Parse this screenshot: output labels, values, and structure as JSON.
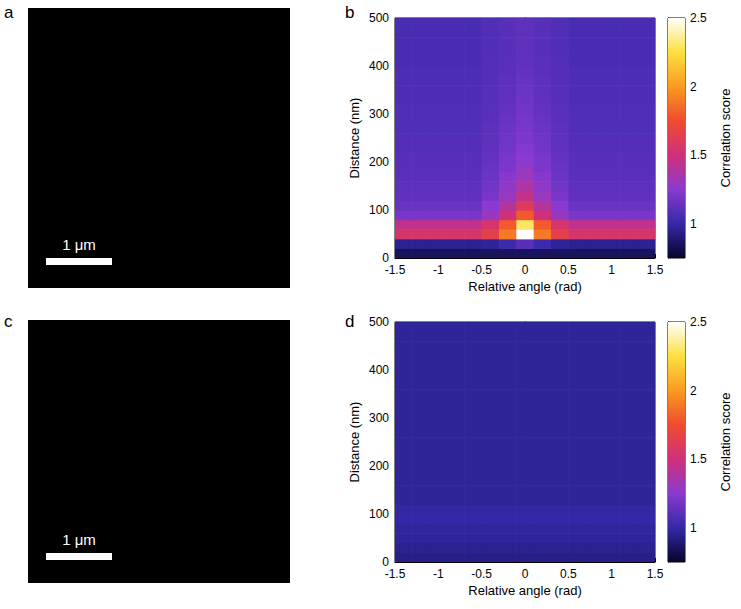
{
  "chart_data": [
    {
      "type": "image",
      "panel_label": "a",
      "scale_bar_label": "1 μm"
    },
    {
      "type": "heatmap",
      "panel_label": "b",
      "xlabel": "Relative angle (rad)",
      "ylabel": "Distance (nm)",
      "xlim": [
        -1.5,
        1.5
      ],
      "xticks": [
        -1.5,
        -1,
        -0.5,
        0,
        0.5,
        1,
        1.5
      ],
      "ylim": [
        0,
        500
      ],
      "yticks": [
        0,
        100,
        200,
        300,
        400,
        500
      ],
      "x_bins": [
        -1.5,
        -1.3,
        -1.1,
        -0.9,
        -0.7,
        -0.5,
        -0.3,
        -0.1,
        0.1,
        0.3,
        0.5,
        0.7,
        0.9,
        1.1,
        1.3,
        1.5
      ],
      "y_bins": [
        0,
        20,
        40,
        60,
        80,
        100,
        120,
        140,
        160,
        180,
        200,
        220,
        240,
        260,
        280,
        300,
        320,
        340,
        360,
        380,
        400,
        420,
        440,
        460,
        480,
        500
      ],
      "cells": [
        [
          0.85,
          0.85,
          0.85,
          0.85,
          0.85,
          0.85,
          0.85,
          0.85,
          0.85,
          0.85,
          0.85,
          0.85,
          0.85,
          0.85,
          0.85
        ],
        [
          0.95,
          0.95,
          0.95,
          0.95,
          0.95,
          0.97,
          1.02,
          1.1,
          1.02,
          0.97,
          0.95,
          0.95,
          0.95,
          0.95,
          0.95
        ],
        [
          1.55,
          1.55,
          1.55,
          1.55,
          1.55,
          1.65,
          1.9,
          2.5,
          1.9,
          1.65,
          1.55,
          1.55,
          1.55,
          1.55,
          1.55
        ],
        [
          1.45,
          1.45,
          1.45,
          1.45,
          1.45,
          1.55,
          1.8,
          2.3,
          1.8,
          1.55,
          1.45,
          1.45,
          1.45,
          1.45,
          1.45
        ],
        [
          1.2,
          1.2,
          1.2,
          1.2,
          1.2,
          1.3,
          1.5,
          1.8,
          1.5,
          1.3,
          1.2,
          1.2,
          1.2,
          1.2,
          1.2
        ],
        [
          1.15,
          1.15,
          1.15,
          1.15,
          1.15,
          1.25,
          1.4,
          1.6,
          1.4,
          1.25,
          1.15,
          1.15,
          1.15,
          1.15,
          1.15
        ],
        [
          1.13,
          1.13,
          1.13,
          1.13,
          1.13,
          1.2,
          1.3,
          1.45,
          1.3,
          1.2,
          1.13,
          1.13,
          1.13,
          1.13,
          1.13
        ],
        [
          1.12,
          1.12,
          1.12,
          1.12,
          1.12,
          1.18,
          1.27,
          1.38,
          1.27,
          1.18,
          1.12,
          1.12,
          1.12,
          1.12,
          1.12
        ],
        [
          1.11,
          1.11,
          1.11,
          1.11,
          1.11,
          1.16,
          1.24,
          1.32,
          1.24,
          1.16,
          1.11,
          1.11,
          1.11,
          1.11,
          1.11
        ],
        [
          1.1,
          1.1,
          1.1,
          1.1,
          1.1,
          1.15,
          1.21,
          1.28,
          1.21,
          1.15,
          1.1,
          1.1,
          1.1,
          1.1,
          1.1
        ],
        [
          1.1,
          1.1,
          1.1,
          1.1,
          1.1,
          1.14,
          1.2,
          1.25,
          1.2,
          1.14,
          1.1,
          1.1,
          1.1,
          1.1,
          1.1
        ],
        [
          1.09,
          1.09,
          1.09,
          1.09,
          1.09,
          1.13,
          1.18,
          1.23,
          1.18,
          1.13,
          1.09,
          1.09,
          1.09,
          1.09,
          1.09
        ],
        [
          1.09,
          1.09,
          1.09,
          1.09,
          1.09,
          1.12,
          1.17,
          1.21,
          1.17,
          1.12,
          1.09,
          1.09,
          1.09,
          1.09,
          1.09
        ],
        [
          1.08,
          1.08,
          1.08,
          1.08,
          1.08,
          1.12,
          1.16,
          1.2,
          1.16,
          1.12,
          1.08,
          1.08,
          1.08,
          1.08,
          1.08
        ],
        [
          1.08,
          1.08,
          1.08,
          1.08,
          1.08,
          1.11,
          1.15,
          1.19,
          1.15,
          1.11,
          1.08,
          1.08,
          1.08,
          1.08,
          1.08
        ],
        [
          1.08,
          1.08,
          1.08,
          1.08,
          1.08,
          1.11,
          1.14,
          1.18,
          1.14,
          1.11,
          1.08,
          1.08,
          1.08,
          1.08,
          1.08
        ],
        [
          1.07,
          1.07,
          1.07,
          1.07,
          1.07,
          1.1,
          1.13,
          1.17,
          1.13,
          1.1,
          1.07,
          1.07,
          1.07,
          1.07,
          1.07
        ],
        [
          1.07,
          1.07,
          1.07,
          1.07,
          1.07,
          1.1,
          1.12,
          1.16,
          1.12,
          1.1,
          1.07,
          1.07,
          1.07,
          1.07,
          1.07
        ],
        [
          1.07,
          1.07,
          1.07,
          1.07,
          1.07,
          1.09,
          1.12,
          1.15,
          1.12,
          1.09,
          1.07,
          1.07,
          1.07,
          1.07,
          1.07
        ],
        [
          1.07,
          1.07,
          1.07,
          1.07,
          1.07,
          1.09,
          1.11,
          1.14,
          1.11,
          1.09,
          1.07,
          1.07,
          1.07,
          1.07,
          1.07
        ],
        [
          1.06,
          1.06,
          1.06,
          1.06,
          1.06,
          1.09,
          1.11,
          1.13,
          1.11,
          1.09,
          1.06,
          1.06,
          1.06,
          1.06,
          1.06
        ],
        [
          1.06,
          1.06,
          1.06,
          1.06,
          1.06,
          1.08,
          1.1,
          1.12,
          1.1,
          1.08,
          1.06,
          1.06,
          1.06,
          1.06,
          1.06
        ],
        [
          1.06,
          1.06,
          1.06,
          1.06,
          1.06,
          1.08,
          1.1,
          1.12,
          1.1,
          1.08,
          1.06,
          1.06,
          1.06,
          1.06,
          1.06
        ],
        [
          1.06,
          1.06,
          1.06,
          1.06,
          1.06,
          1.08,
          1.1,
          1.12,
          1.1,
          1.08,
          1.06,
          1.06,
          1.06,
          1.06,
          1.06
        ],
        [
          1.06,
          1.06,
          1.06,
          1.06,
          1.06,
          1.08,
          1.1,
          1.12,
          1.1,
          1.08,
          1.06,
          1.06,
          1.06,
          1.06,
          1.06
        ]
      ],
      "colorbar_label": "Correlation score",
      "colorbar_range": [
        0.75,
        2.5
      ],
      "colorbar_ticks": [
        1,
        1.5,
        2,
        2.5
      ]
    },
    {
      "type": "image",
      "panel_label": "c",
      "scale_bar_label": "1 μm"
    },
    {
      "type": "heatmap",
      "panel_label": "d",
      "xlabel": "Relative angle (rad)",
      "ylabel": "Distance (nm)",
      "xlim": [
        -1.5,
        1.5
      ],
      "xticks": [
        -1.5,
        -1,
        -0.5,
        0,
        0.5,
        1,
        1.5
      ],
      "ylim": [
        0,
        500
      ],
      "yticks": [
        0,
        100,
        200,
        300,
        400,
        500
      ],
      "x_bins": [
        -1.5,
        -1.3,
        -1.1,
        -0.9,
        -0.7,
        -0.5,
        -0.3,
        -0.1,
        0.1,
        0.3,
        0.5,
        0.7,
        0.9,
        1.1,
        1.3,
        1.5
      ],
      "y_bins": [
        0,
        20,
        40,
        60,
        80,
        100,
        120,
        140,
        160,
        180,
        200,
        220,
        240,
        260,
        280,
        300,
        320,
        340,
        360,
        380,
        400,
        420,
        440,
        460,
        480,
        500
      ],
      "cells": [
        [
          0.93,
          0.93,
          0.93,
          0.93,
          0.93,
          0.93,
          0.93,
          0.93,
          0.93,
          0.93,
          0.93,
          0.93,
          0.93,
          0.93,
          0.93
        ],
        [
          0.95,
          0.95,
          0.95,
          0.95,
          0.95,
          0.95,
          0.95,
          0.95,
          0.95,
          0.95,
          0.95,
          0.95,
          0.95,
          0.95,
          0.95
        ],
        [
          0.97,
          0.97,
          0.97,
          0.97,
          0.97,
          0.97,
          0.97,
          0.97,
          0.97,
          0.97,
          0.97,
          0.97,
          0.97,
          0.97,
          0.97
        ],
        [
          0.98,
          0.98,
          0.98,
          0.98,
          0.98,
          0.98,
          0.98,
          0.98,
          0.98,
          0.98,
          0.98,
          0.98,
          0.98,
          0.98,
          0.98
        ],
        [
          1.0,
          1.0,
          1.0,
          1.0,
          1.0,
          1.0,
          1.0,
          1.0,
          1.0,
          1.0,
          1.0,
          1.0,
          1.0,
          1.0,
          1.0
        ],
        [
          0.99,
          0.99,
          0.99,
          0.99,
          0.99,
          0.99,
          0.99,
          0.99,
          0.99,
          0.99,
          0.99,
          0.99,
          0.99,
          0.99,
          0.99
        ],
        [
          0.97,
          0.97,
          0.97,
          0.97,
          0.97,
          0.97,
          0.97,
          0.97,
          0.97,
          0.97,
          0.97,
          0.97,
          0.97,
          0.97,
          0.97
        ],
        [
          0.97,
          0.97,
          0.97,
          0.97,
          0.97,
          0.97,
          0.97,
          0.97,
          0.97,
          0.97,
          0.97,
          0.97,
          0.97,
          0.97,
          0.97
        ],
        [
          0.97,
          0.97,
          0.97,
          0.97,
          0.97,
          0.97,
          0.97,
          0.97,
          0.97,
          0.97,
          0.97,
          0.97,
          0.97,
          0.97,
          0.97
        ],
        [
          0.97,
          0.97,
          0.97,
          0.97,
          0.97,
          0.97,
          0.97,
          0.97,
          0.97,
          0.97,
          0.97,
          0.97,
          0.97,
          0.97,
          0.97
        ],
        [
          0.97,
          0.97,
          0.97,
          0.97,
          0.97,
          0.97,
          0.97,
          0.97,
          0.97,
          0.97,
          0.97,
          0.97,
          0.97,
          0.97,
          0.97
        ],
        [
          0.97,
          0.97,
          0.97,
          0.97,
          0.97,
          0.97,
          0.97,
          0.97,
          0.97,
          0.97,
          0.97,
          0.97,
          0.97,
          0.97,
          0.97
        ],
        [
          0.97,
          0.97,
          0.97,
          0.97,
          0.97,
          0.97,
          0.97,
          0.97,
          0.97,
          0.97,
          0.97,
          0.97,
          0.97,
          0.97,
          0.97
        ],
        [
          0.97,
          0.97,
          0.97,
          0.97,
          0.97,
          0.97,
          0.97,
          0.97,
          0.97,
          0.97,
          0.97,
          0.97,
          0.97,
          0.97,
          0.97
        ],
        [
          0.97,
          0.97,
          0.97,
          0.97,
          0.97,
          0.97,
          0.97,
          0.97,
          0.97,
          0.97,
          0.97,
          0.97,
          0.97,
          0.97,
          0.97
        ],
        [
          0.97,
          0.97,
          0.97,
          0.97,
          0.97,
          0.97,
          0.97,
          0.97,
          0.97,
          0.97,
          0.97,
          0.97,
          0.97,
          0.97,
          0.97
        ],
        [
          0.97,
          0.97,
          0.97,
          0.97,
          0.97,
          0.97,
          0.97,
          0.97,
          0.97,
          0.97,
          0.97,
          0.97,
          0.97,
          0.97,
          0.97
        ],
        [
          0.97,
          0.97,
          0.97,
          0.97,
          0.97,
          0.97,
          0.97,
          0.97,
          0.97,
          0.97,
          0.97,
          0.97,
          0.97,
          0.97,
          0.97
        ],
        [
          0.97,
          0.97,
          0.97,
          0.97,
          0.97,
          0.97,
          0.97,
          0.97,
          0.97,
          0.97,
          0.97,
          0.97,
          0.97,
          0.97,
          0.97
        ],
        [
          0.97,
          0.97,
          0.97,
          0.97,
          0.97,
          0.97,
          0.97,
          0.97,
          0.97,
          0.97,
          0.97,
          0.97,
          0.97,
          0.97,
          0.97
        ],
        [
          0.97,
          0.97,
          0.97,
          0.97,
          0.97,
          0.97,
          0.97,
          0.97,
          0.97,
          0.97,
          0.97,
          0.97,
          0.97,
          0.97,
          0.97
        ],
        [
          0.97,
          0.97,
          0.97,
          0.97,
          0.97,
          0.97,
          0.97,
          0.97,
          0.97,
          0.97,
          0.97,
          0.97,
          0.97,
          0.97,
          0.97
        ],
        [
          0.97,
          0.97,
          0.97,
          0.97,
          0.97,
          0.97,
          0.97,
          0.97,
          0.97,
          0.97,
          0.97,
          0.97,
          0.97,
          0.97,
          0.97
        ],
        [
          0.97,
          0.97,
          0.97,
          0.97,
          0.97,
          0.97,
          0.97,
          0.97,
          0.97,
          0.97,
          0.97,
          0.97,
          0.97,
          0.97,
          0.97
        ],
        [
          0.97,
          0.97,
          0.97,
          0.97,
          0.97,
          0.97,
          0.97,
          0.97,
          0.97,
          0.97,
          0.97,
          0.97,
          0.97,
          0.97,
          0.97
        ]
      ],
      "colorbar_label": "Correlation score",
      "colorbar_range": [
        0.75,
        2.5
      ],
      "colorbar_ticks": [
        1,
        1.5,
        2,
        2.5
      ]
    }
  ]
}
